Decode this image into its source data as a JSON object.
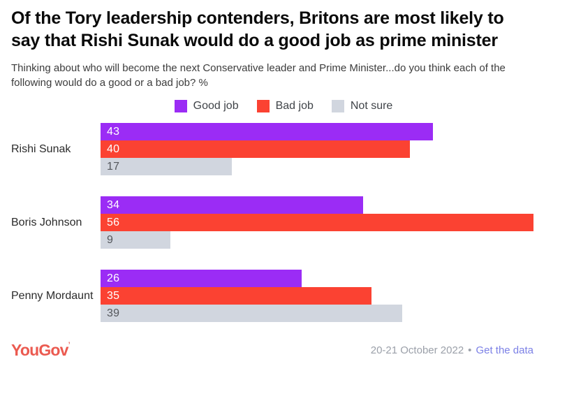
{
  "chart_data": {
    "type": "bar",
    "orientation": "horizontal",
    "title": "Of the Tory leadership contenders, Britons are most likely to say that Rishi Sunak would do a good job as prime minister",
    "subtitle": "Thinking about who will become the next Conservative leader and Prime Minister...do you think each of the following would do a good or a bad job? %",
    "categories": [
      "Rishi Sunak",
      "Boris Johnson",
      "Penny Mordaunt"
    ],
    "series": [
      {
        "name": "Good job",
        "color": "#9b2cf5",
        "label_color": "#ffffff",
        "values": [
          43,
          34,
          26
        ]
      },
      {
        "name": "Bad job",
        "color": "#fb4232",
        "label_color": "#ffffff",
        "values": [
          40,
          56,
          35
        ]
      },
      {
        "name": "Not sure",
        "color": "#d1d6df",
        "label_color": "#54575c",
        "values": [
          17,
          9,
          39
        ]
      }
    ],
    "unit": "%",
    "xmax": 56,
    "value_labels": "inside-start",
    "legend_position": "top-center",
    "grid": false
  },
  "footer": {
    "logo_text": "YouGov",
    "logo_mark": "’",
    "logo_color": "#eb5a50",
    "date": "20-21 October 2022",
    "separator": "•",
    "link_label": "Get the data",
    "link_color": "#7c81e6"
  }
}
